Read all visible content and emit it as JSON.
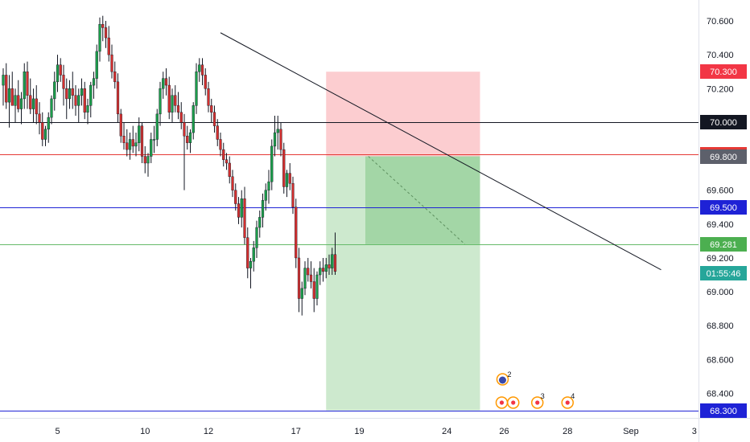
{
  "chart_data": {
    "type": "candlestick",
    "title": "",
    "y_axis": {
      "ticks": [
        "70.600",
        "70.400",
        "70.200",
        "70.000",
        "69.800",
        "69.600",
        "69.400",
        "69.200",
        "69.000",
        "68.800",
        "68.600",
        "68.400"
      ],
      "tick_values": [
        70.6,
        70.4,
        70.2,
        70.0,
        69.8,
        69.6,
        69.4,
        69.2,
        69.0,
        68.8,
        68.6,
        68.4
      ],
      "range": [
        68.26,
        70.72
      ]
    },
    "x_axis": {
      "labels": [
        "5",
        "10",
        "12",
        "17",
        "19",
        "24",
        "26",
        "28",
        "Sep",
        "3"
      ],
      "label_bar_index": [
        18,
        47,
        68,
        97,
        118,
        147,
        166,
        187,
        208,
        229
      ]
    },
    "horizontal_lines": [
      {
        "name": "level-70000",
        "price": 70.0,
        "color": "#131722",
        "label": "70.000"
      },
      {
        "name": "level-69812",
        "price": 69.812,
        "color": "#e53935",
        "label": "69.812"
      },
      {
        "name": "level-69500",
        "price": 69.5,
        "color": "#1e22d6",
        "label": "69.500"
      },
      {
        "name": "level-69281",
        "price": 69.281,
        "color": "#66bb6a",
        "label": "69.281"
      },
      {
        "name": "level-68300",
        "price": 68.3,
        "color": "#1e22d6",
        "label": "68.300"
      }
    ],
    "axis_badges": [
      {
        "name": "badge-70300",
        "price": 70.3,
        "text": "70.300",
        "color": "#f23645"
      },
      {
        "name": "badge-69800",
        "price": 69.8,
        "text": "69.800",
        "color": "#5d606b"
      },
      {
        "name": "badge-timer",
        "price": 69.11,
        "text": "01:55:46",
        "color": "#26a69a"
      }
    ],
    "position_tool": {
      "bar_start": 107,
      "bar_end": 158,
      "entry": 69.8,
      "stop": 70.3,
      "target": 68.3,
      "filled_bar_start": 120,
      "filled_price": 69.281
    },
    "trendline": {
      "bar_start": 72,
      "price_start": 70.53,
      "bar_end": 218,
      "price_end": 69.13
    },
    "dotted_line": {
      "bar_start": 121,
      "price_start": 69.8,
      "bar_end": 153,
      "price_end": 69.281
    },
    "events": [
      {
        "bar": 166,
        "label": "2"
      },
      {
        "bar": 166,
        "label": ""
      },
      {
        "bar": 169,
        "label": ""
      },
      {
        "bar": 177,
        "label": "3"
      },
      {
        "bar": 187,
        "label": "4"
      }
    ],
    "candles": [
      [
        70.22,
        70.32,
        70.1,
        70.28
      ],
      [
        70.28,
        70.35,
        70.08,
        70.12
      ],
      [
        70.12,
        70.28,
        69.97,
        70.2
      ],
      [
        70.2,
        70.3,
        70.1,
        70.1
      ],
      [
        70.1,
        70.2,
        70.0,
        70.16
      ],
      [
        70.16,
        70.25,
        70.06,
        70.08
      ],
      [
        70.08,
        70.18,
        69.99,
        70.14
      ],
      [
        70.14,
        70.35,
        70.08,
        70.3
      ],
      [
        70.3,
        70.36,
        70.08,
        70.16
      ],
      [
        70.16,
        70.26,
        70.05,
        70.08
      ],
      [
        70.08,
        70.2,
        70.0,
        70.14
      ],
      [
        70.14,
        70.22,
        69.99,
        70.05
      ],
      [
        70.05,
        70.12,
        69.93,
        70.0
      ],
      [
        70.0,
        70.06,
        69.86,
        69.9
      ],
      [
        69.9,
        69.98,
        69.86,
        69.96
      ],
      [
        69.96,
        70.06,
        69.88,
        70.03
      ],
      [
        70.03,
        70.16,
        69.99,
        70.14
      ],
      [
        70.14,
        70.3,
        70.07,
        70.24
      ],
      [
        70.24,
        70.4,
        70.18,
        70.34
      ],
      [
        70.34,
        70.38,
        70.24,
        70.28
      ],
      [
        70.28,
        70.34,
        70.1,
        70.2
      ],
      [
        70.2,
        70.26,
        70.02,
        70.14
      ],
      [
        70.14,
        70.25,
        70.08,
        70.2
      ],
      [
        70.2,
        70.3,
        70.08,
        70.16
      ],
      [
        70.16,
        70.22,
        70.04,
        70.1
      ],
      [
        70.1,
        70.2,
        70.0,
        70.16
      ],
      [
        70.16,
        70.26,
        70.1,
        70.2
      ],
      [
        70.2,
        70.24,
        70.02,
        70.06
      ],
      [
        70.06,
        70.14,
        69.99,
        70.1
      ],
      [
        70.1,
        70.24,
        70.03,
        70.22
      ],
      [
        70.22,
        70.3,
        70.14,
        70.26
      ],
      [
        70.26,
        70.46,
        70.2,
        70.42
      ],
      [
        70.42,
        70.62,
        70.36,
        70.58
      ],
      [
        70.58,
        70.63,
        70.48,
        70.56
      ],
      [
        70.56,
        70.6,
        70.44,
        70.5
      ],
      [
        70.5,
        70.57,
        70.36,
        70.4
      ],
      [
        70.4,
        70.46,
        70.26,
        70.3
      ],
      [
        70.3,
        70.36,
        70.2,
        70.24
      ],
      [
        70.24,
        70.29,
        70.0,
        70.05
      ],
      [
        70.05,
        70.08,
        69.88,
        69.92
      ],
      [
        69.92,
        70.0,
        69.84,
        69.88
      ],
      [
        69.88,
        69.96,
        69.8,
        69.84
      ],
      [
        69.84,
        69.94,
        69.78,
        69.9
      ],
      [
        69.9,
        69.98,
        69.82,
        69.86
      ],
      [
        69.86,
        69.94,
        69.8,
        69.88
      ],
      [
        69.88,
        70.03,
        69.83,
        69.98
      ],
      [
        69.98,
        70.0,
        69.76,
        69.8
      ],
      [
        69.8,
        69.86,
        69.7,
        69.76
      ],
      [
        69.76,
        69.82,
        69.68,
        69.8
      ],
      [
        69.8,
        69.94,
        69.76,
        69.9
      ],
      [
        69.9,
        69.98,
        69.82,
        69.9
      ],
      [
        69.9,
        70.08,
        69.86,
        70.05
      ],
      [
        70.05,
        70.24,
        69.98,
        70.2
      ],
      [
        70.2,
        70.3,
        70.14,
        70.26
      ],
      [
        70.26,
        70.32,
        70.16,
        70.22
      ],
      [
        70.22,
        70.27,
        70.02,
        70.06
      ],
      [
        70.06,
        70.2,
        70.0,
        70.16
      ],
      [
        70.16,
        70.22,
        70.06,
        70.1
      ],
      [
        70.1,
        70.18,
        70.02,
        70.06
      ],
      [
        70.06,
        70.12,
        69.96,
        70.0
      ],
      [
        70.0,
        70.05,
        69.6,
        69.92
      ],
      [
        69.92,
        69.98,
        69.84,
        69.88
      ],
      [
        69.88,
        69.96,
        69.82,
        69.94
      ],
      [
        69.94,
        70.12,
        69.9,
        70.1
      ],
      [
        70.1,
        70.35,
        70.05,
        70.3
      ],
      [
        70.3,
        70.38,
        70.24,
        70.34
      ],
      [
        70.34,
        70.38,
        70.22,
        70.28
      ],
      [
        70.28,
        70.32,
        70.16,
        70.2
      ],
      [
        70.2,
        70.24,
        70.06,
        70.1
      ],
      [
        70.1,
        70.14,
        70.0,
        70.06
      ],
      [
        70.06,
        70.1,
        69.94,
        69.98
      ],
      [
        69.98,
        70.02,
        69.86,
        69.9
      ],
      [
        69.9,
        69.94,
        69.8,
        69.84
      ],
      [
        69.84,
        69.88,
        69.74,
        69.78
      ],
      [
        69.78,
        69.82,
        69.72,
        69.76
      ],
      [
        69.76,
        69.8,
        69.64,
        69.68
      ],
      [
        69.68,
        69.72,
        69.56,
        69.6
      ],
      [
        69.6,
        69.64,
        69.48,
        69.52
      ],
      [
        69.52,
        69.56,
        69.4,
        69.44
      ],
      [
        69.44,
        69.6,
        69.38,
        69.55
      ],
      [
        69.55,
        69.62,
        69.28,
        69.32
      ],
      [
        69.32,
        69.38,
        69.08,
        69.14
      ],
      [
        69.14,
        69.2,
        69.02,
        69.18
      ],
      [
        69.18,
        69.3,
        69.12,
        69.26
      ],
      [
        69.26,
        69.42,
        69.2,
        69.38
      ],
      [
        69.38,
        69.48,
        69.32,
        69.44
      ],
      [
        69.44,
        69.58,
        69.38,
        69.54
      ],
      [
        69.54,
        69.64,
        69.48,
        69.6
      ],
      [
        69.6,
        69.72,
        69.52,
        69.65
      ],
      [
        69.65,
        69.9,
        69.6,
        69.86
      ],
      [
        69.86,
        70.04,
        69.8,
        69.94
      ],
      [
        69.94,
        70.04,
        69.84,
        69.96
      ],
      [
        69.96,
        70.0,
        69.8,
        69.84
      ],
      [
        69.84,
        69.88,
        69.58,
        69.62
      ],
      [
        69.62,
        69.72,
        69.56,
        69.7
      ],
      [
        69.7,
        69.76,
        69.6,
        69.64
      ],
      [
        69.64,
        69.68,
        69.46,
        69.5
      ],
      [
        69.5,
        69.55,
        69.14,
        69.2
      ],
      [
        69.2,
        69.26,
        68.88,
        68.96
      ],
      [
        68.96,
        69.06,
        68.86,
        69.02
      ],
      [
        69.02,
        69.18,
        68.98,
        69.14
      ],
      [
        69.14,
        69.2,
        69.06,
        69.1
      ],
      [
        69.1,
        69.18,
        69.02,
        69.06
      ],
      [
        69.06,
        69.14,
        68.88,
        68.96
      ],
      [
        68.96,
        69.12,
        68.92,
        69.1
      ],
      [
        69.1,
        69.18,
        69.04,
        69.14
      ],
      [
        69.14,
        69.2,
        69.06,
        69.12
      ],
      [
        69.12,
        69.2,
        69.08,
        69.16
      ],
      [
        69.16,
        69.22,
        69.1,
        69.14
      ],
      [
        69.14,
        69.26,
        69.1,
        69.22
      ],
      [
        69.22,
        69.35,
        69.1,
        69.12
      ]
    ]
  }
}
